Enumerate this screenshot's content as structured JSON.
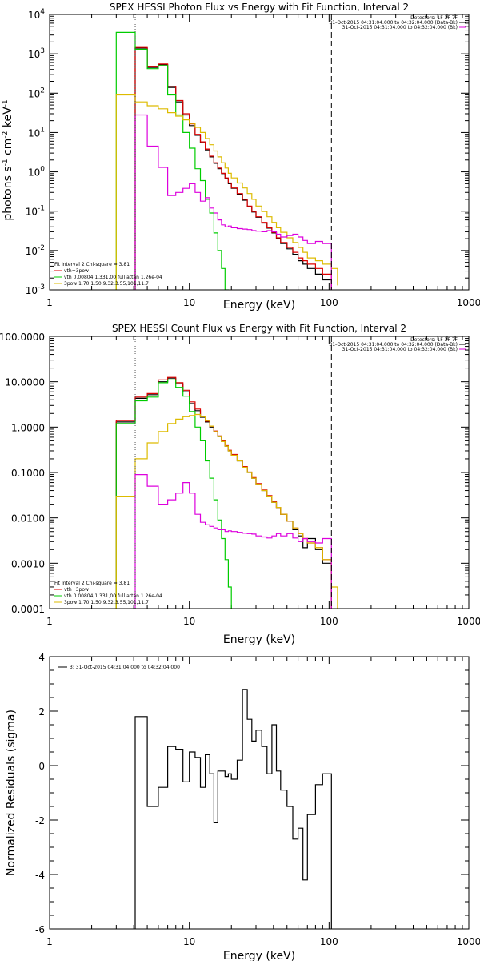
{
  "chart_data": [
    {
      "type": "line",
      "title": "SPEX HESSI Photon Flux vs Energy with Fit Function, Interval 2",
      "xlabel": "Energy (keV)",
      "ylabel_html": "photons s<tspan dy='-5' font-size='9'>-1</tspan><tspan dy='5'> cm</tspan><tspan dy='-5' font-size='9'>-2</tspan><tspan dy='5'> keV</tspan><tspan dy='-5' font-size='9'>-1</tspan>",
      "xscale": "log",
      "yscale": "log",
      "xlim": [
        1,
        1000
      ],
      "ylim": [
        0.001,
        10000
      ],
      "xticks": [
        1,
        10,
        100,
        1000
      ],
      "xtick_labels": [
        "1",
        "10",
        "100",
        "1000"
      ],
      "yticks": [
        0.001,
        0.01,
        0.1,
        1,
        10,
        100,
        1000,
        10000
      ],
      "ytick_labels": [
        "10^-3",
        "10^-2",
        "10^-1",
        "10^0",
        "10^1",
        "10^2",
        "10^3",
        "10^4"
      ],
      "vlines": [
        {
          "x": 4.1,
          "style": "dotted"
        },
        {
          "x": 104,
          "style": "dashed"
        }
      ],
      "legend_top": [
        "Detectors: 1F 3F 7F",
        "31-Oct-2015 04:31:04.000 to 04:32:04.000 (Data-Bk)",
        "31-Oct-2015 04:31:04.000 to 04:32:04.000 (Bk)"
      ],
      "legend_bottom": [
        "Fit Interval 2   Chi-square = 3.81",
        "vth+3pow",
        "vth 0.00804,1.331,00  full attan 1.26e-04",
        "3pow 1.70,1.50,9.32,3.55,101,11.7"
      ],
      "series": [
        {
          "name": "Data-Bk",
          "color": "#000000",
          "edges": [
            4.1,
            5.0,
            6.0,
            7.0,
            8.0,
            9.0,
            10.0,
            11.0,
            12.0,
            13.0,
            14.0,
            15.0,
            16.0,
            17.0,
            18.0,
            19.0,
            20.0,
            22.0,
            24.0,
            26.0,
            28.0,
            30.0,
            33.0,
            36.0,
            39.0,
            42.0,
            45.0,
            50.0,
            55.0,
            60.0,
            65.0,
            70.0,
            80.0,
            90.0,
            104.0
          ],
          "values": [
            1400,
            450,
            530,
            140,
            60,
            28,
            15,
            8.5,
            5.5,
            3.6,
            2.4,
            1.65,
            1.2,
            0.9,
            0.68,
            0.5,
            0.38,
            0.27,
            0.19,
            0.13,
            0.095,
            0.07,
            0.05,
            0.037,
            0.028,
            0.02,
            0.015,
            0.011,
            0.008,
            0.0055,
            0.0045,
            0.0035,
            0.0025,
            0.0018
          ]
        },
        {
          "name": "vth+3pow",
          "color": "#dd0000",
          "edges": [
            4.1,
            5.0,
            6.0,
            7.0,
            8.0,
            9.0,
            10.0,
            11.0,
            12.0,
            13.0,
            14.0,
            15.0,
            16.0,
            17.0,
            18.0,
            19.0,
            20.0,
            22.0,
            24.0,
            26.0,
            28.0,
            30.0,
            33.0,
            36.0,
            39.0,
            42.0,
            45.0,
            50.0,
            55.0,
            60.0,
            65.0,
            70.0,
            80.0,
            90.0,
            104.0
          ],
          "values": [
            1450,
            470,
            550,
            150,
            65,
            30,
            16.5,
            9,
            5.8,
            3.8,
            2.5,
            1.7,
            1.25,
            0.92,
            0.7,
            0.52,
            0.39,
            0.28,
            0.2,
            0.135,
            0.098,
            0.072,
            0.052,
            0.038,
            0.029,
            0.021,
            0.016,
            0.012,
            0.009,
            0.0065,
            0.0055,
            0.0045,
            0.0035,
            0.0025
          ]
        },
        {
          "name": "vth",
          "color": "#00cc00",
          "edges": [
            3.0,
            4.1,
            5.0,
            6.0,
            7.0,
            8.0,
            9.0,
            10.0,
            11.0,
            12.0,
            13.0,
            14.0,
            15.0,
            16.0,
            17.0,
            18.0,
            19.0
          ],
          "values": [
            3500,
            1300,
            420,
            500,
            90,
            28,
            10,
            4,
            1.2,
            0.6,
            0.2,
            0.09,
            0.028,
            0.01,
            0.0035,
            0.001
          ]
        },
        {
          "name": "3pow",
          "color": "#ddbb00",
          "edges": [
            3.0,
            4.1,
            5.0,
            6.0,
            7.0,
            8.0,
            9.0,
            10.0,
            11.0,
            12.0,
            13.0,
            14.0,
            15.0,
            16.0,
            17.0,
            18.0,
            19.0,
            20.0,
            22.0,
            24.0,
            26.0,
            28.0,
            30.0,
            33.0,
            36.0,
            39.0,
            42.0,
            45.0,
            50.0,
            55.0,
            60.0,
            65.0,
            70.0,
            80.0,
            90.0,
            104.0,
            115.0
          ],
          "values": [
            90,
            60,
            48,
            40,
            32,
            26,
            21,
            17,
            13.5,
            10,
            7,
            4.9,
            3.4,
            2.4,
            1.7,
            1.25,
            0.92,
            0.7,
            0.52,
            0.39,
            0.28,
            0.2,
            0.135,
            0.098,
            0.072,
            0.052,
            0.038,
            0.029,
            0.021,
            0.016,
            0.012,
            0.009,
            0.0065,
            0.0055,
            0.0045,
            0.0035,
            0.0013
          ]
        },
        {
          "name": "Bk",
          "color": "#dd00dd",
          "edges": [
            4.1,
            5.0,
            6.0,
            7.0,
            8.0,
            9.0,
            10.0,
            11.0,
            12.0,
            13.0,
            14.0,
            15.0,
            16.0,
            17.0,
            18.0,
            19.0,
            20.0,
            22.0,
            24.0,
            26.0,
            28.0,
            30.0,
            33.0,
            36.0,
            39.0,
            42.0,
            45.0,
            50.0,
            55.0,
            60.0,
            65.0,
            70.0,
            80.0,
            90.0,
            104.0
          ],
          "values": [
            28,
            4.5,
            1.3,
            0.25,
            0.3,
            0.38,
            0.5,
            0.3,
            0.18,
            0.22,
            0.12,
            0.09,
            0.06,
            0.045,
            0.04,
            0.042,
            0.038,
            0.036,
            0.035,
            0.034,
            0.032,
            0.031,
            0.03,
            0.032,
            0.03,
            0.026,
            0.022,
            0.024,
            0.026,
            0.022,
            0.018,
            0.015,
            0.017,
            0.015
          ]
        }
      ]
    },
    {
      "type": "line",
      "title": "SPEX HESSI Count Flux vs Energy with Fit Function, Interval 2",
      "xlabel": "Energy (keV)",
      "ylabel_html": "",
      "xscale": "log",
      "yscale": "log",
      "xlim": [
        1,
        1000
      ],
      "ylim": [
        0.0001,
        100
      ],
      "xticks": [
        1,
        10,
        100,
        1000
      ],
      "xtick_labels": [
        "1",
        "10",
        "100",
        "1000"
      ],
      "yticks": [
        0.0001,
        0.001,
        0.01,
        0.1,
        1,
        10,
        100
      ],
      "ytick_labels": [
        "0.0001",
        "0.0010",
        "0.0100",
        "0.1000",
        "1.0000",
        "10.0000",
        "100.0000"
      ],
      "vlines": [
        {
          "x": 4.1,
          "style": "dotted"
        },
        {
          "x": 104,
          "style": "dashed"
        }
      ],
      "legend_top": [
        "Detectors: 1F 3F 7F",
        "31-Oct-2015 04:31:04.000 to 04:32:04.000 (Data-Bk)",
        "31-Oct-2015 04:31:04.000 to 04:32:04.000 (Bk)"
      ],
      "legend_bottom": [
        "Fit Interval 2   Chi-square = 3.81",
        "vth+3pow",
        "vth 0.00804,1.331,00  full attan 1.26e-04",
        "3pow 1.70,1.50,9.32,3.55,101,11.7"
      ],
      "series": [
        {
          "name": "Data-Bk",
          "color": "#000000",
          "edges": [
            3.0,
            4.1,
            5.0,
            6.0,
            7.0,
            8.0,
            9.0,
            10.0,
            11.0,
            12.0,
            13.0,
            14.0,
            15.0,
            16.0,
            17.0,
            18.0,
            19.0,
            20.0,
            22.0,
            24.0,
            26.0,
            28.0,
            30.0,
            33.0,
            36.0,
            39.0,
            42.0,
            45.0,
            50.0,
            55.0,
            60.0,
            65.0,
            70.0,
            80.0,
            90.0,
            104.0
          ],
          "values": [
            1.3,
            4.3,
            5.2,
            10,
            12,
            9,
            6,
            3.3,
            2.3,
            1.65,
            1.3,
            1.0,
            0.8,
            0.62,
            0.48,
            0.38,
            0.3,
            0.24,
            0.18,
            0.13,
            0.1,
            0.075,
            0.055,
            0.04,
            0.03,
            0.022,
            0.017,
            0.012,
            0.0085,
            0.0055,
            0.004,
            0.0022,
            0.0035,
            0.002,
            0.001
          ]
        },
        {
          "name": "vth+3pow",
          "color": "#dd0000",
          "edges": [
            3.0,
            4.1,
            5.0,
            6.0,
            7.0,
            8.0,
            9.0,
            10.0,
            11.0,
            12.0,
            13.0,
            14.0,
            15.0,
            16.0,
            17.0,
            18.0,
            19.0,
            20.0,
            22.0,
            24.0,
            26.0,
            28.0,
            30.0,
            33.0,
            36.0,
            39.0,
            42.0,
            45.0,
            50.0,
            55.0,
            60.0,
            65.0,
            70.0,
            80.0,
            90.0,
            104.0
          ],
          "values": [
            1.4,
            4.6,
            5.5,
            11,
            12.5,
            9.5,
            6.5,
            3.6,
            2.5,
            1.75,
            1.35,
            1.05,
            0.82,
            0.64,
            0.5,
            0.39,
            0.31,
            0.25,
            0.185,
            0.135,
            0.102,
            0.077,
            0.057,
            0.041,
            0.031,
            0.023,
            0.017,
            0.012,
            0.0085,
            0.006,
            0.0045,
            0.0035,
            0.0028,
            0.0022,
            0.0012
          ]
        },
        {
          "name": "vth",
          "color": "#00cc00",
          "edges": [
            3.0,
            4.1,
            5.0,
            6.0,
            7.0,
            8.0,
            9.0,
            10.0,
            11.0,
            12.0,
            13.0,
            14.0,
            15.0,
            16.0,
            17.0,
            18.0,
            19.0,
            20.0
          ],
          "values": [
            1.2,
            3.8,
            4.6,
            9.5,
            11,
            7.5,
            4.8,
            2.2,
            1.0,
            0.5,
            0.18,
            0.075,
            0.025,
            0.009,
            0.0035,
            0.0012,
            0.0003
          ]
        },
        {
          "name": "3pow",
          "color": "#ddbb00",
          "edges": [
            3.0,
            4.1,
            5.0,
            6.0,
            7.0,
            8.0,
            9.0,
            10.0,
            11.0,
            12.0,
            13.0,
            14.0,
            15.0,
            16.0,
            17.0,
            18.0,
            19.0,
            20.0,
            22.0,
            24.0,
            26.0,
            28.0,
            30.0,
            33.0,
            36.0,
            39.0,
            42.0,
            45.0,
            50.0,
            55.0,
            60.0,
            65.0,
            70.0,
            80.0,
            90.0,
            104.0,
            115.0
          ],
          "values": [
            0.03,
            0.2,
            0.45,
            0.8,
            1.2,
            1.5,
            1.7,
            1.8,
            1.9,
            1.7,
            1.4,
            1.05,
            0.8,
            0.62,
            0.48,
            0.38,
            0.3,
            0.24,
            0.18,
            0.13,
            0.1,
            0.075,
            0.055,
            0.04,
            0.03,
            0.022,
            0.017,
            0.012,
            0.0085,
            0.006,
            0.0045,
            0.0035,
            0.0028,
            0.0022,
            0.0012,
            0.0003
          ]
        },
        {
          "name": "Bk",
          "color": "#dd00dd",
          "edges": [
            4.1,
            5.0,
            6.0,
            7.0,
            8.0,
            9.0,
            10.0,
            11.0,
            12.0,
            13.0,
            14.0,
            15.0,
            16.0,
            17.0,
            18.0,
            19.0,
            20.0,
            22.0,
            24.0,
            26.0,
            28.0,
            30.0,
            33.0,
            36.0,
            39.0,
            42.0,
            45.0,
            50.0,
            55.0,
            60.0,
            65.0,
            70.0,
            80.0,
            90.0,
            104.0
          ],
          "values": [
            0.09,
            0.05,
            0.02,
            0.025,
            0.035,
            0.06,
            0.035,
            0.012,
            0.008,
            0.007,
            0.0065,
            0.006,
            0.0055,
            0.0055,
            0.005,
            0.0052,
            0.005,
            0.0048,
            0.0046,
            0.0045,
            0.0044,
            0.004,
            0.0038,
            0.0036,
            0.004,
            0.0045,
            0.004,
            0.0045,
            0.0036,
            0.003,
            0.0035,
            0.003,
            0.0028,
            0.0035
          ]
        }
      ]
    },
    {
      "type": "line",
      "title": "",
      "xlabel": "Energy (keV)",
      "ylabel": "Normalized Residuals (sigma)",
      "xscale": "log",
      "yscale": "linear",
      "xlim": [
        1,
        1000
      ],
      "ylim": [
        -6,
        4
      ],
      "xticks": [
        1,
        10,
        100,
        1000
      ],
      "xtick_labels": [
        "1",
        "10",
        "100",
        "1000"
      ],
      "yticks": [
        -6,
        -4,
        -2,
        0,
        2,
        4
      ],
      "ytick_labels": [
        "-6",
        "-4",
        "-2",
        "0",
        "2",
        "4"
      ],
      "legend_top": [
        "3: 31-Oct-2015 04:31:04.000 to 04:32:04.000"
      ],
      "series": [
        {
          "name": "3: 31-Oct-2015 04:31:04.000 to 04:32:04.000",
          "color": "#000000",
          "edges": [
            4.1,
            5.0,
            6.0,
            7.0,
            8.0,
            9.0,
            10.0,
            11.0,
            12.0,
            13.0,
            14.0,
            15.0,
            16.0,
            17.0,
            18.0,
            19.0,
            20.0,
            22.0,
            24.0,
            26.0,
            28.0,
            30.0,
            33.0,
            36.0,
            39.0,
            42.0,
            45.0,
            50.0,
            55.0,
            60.0,
            65.0,
            70.0,
            80.0,
            90.0,
            104.0
          ],
          "values": [
            1.8,
            -1.5,
            -0.8,
            0.7,
            0.6,
            -0.6,
            0.5,
            0.3,
            -0.8,
            0.4,
            -0.3,
            -2.1,
            -0.2,
            -0.2,
            -0.4,
            -0.3,
            -0.5,
            0.2,
            2.8,
            1.7,
            0.9,
            1.3,
            0.7,
            -0.3,
            1.5,
            -0.2,
            -0.9,
            -1.5,
            -2.7,
            -2.3,
            -4.2,
            -1.8,
            -0.7,
            -0.3
          ]
        }
      ]
    }
  ]
}
